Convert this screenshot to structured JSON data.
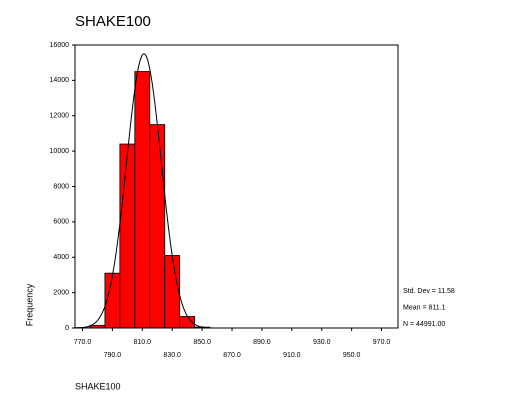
{
  "chart_data": {
    "type": "histogram",
    "title": "SHAKE100",
    "xlabel": "SHAKE100",
    "ylabel": "Frequency",
    "bins": [
      765,
      775,
      785,
      795,
      805,
      815,
      825,
      835,
      845,
      855
    ],
    "values": [
      20,
      150,
      3100,
      10400,
      14500,
      11500,
      4100,
      650,
      50
    ],
    "color": "#ff0000",
    "xlim": [
      765,
      981
    ],
    "xticks": [
      {
        "value": 770,
        "label": "770.0"
      },
      {
        "value": 790,
        "label": "790.0"
      },
      {
        "value": 810,
        "label": "810.0"
      },
      {
        "value": 830,
        "label": "830.0"
      },
      {
        "value": 850,
        "label": "850.0"
      },
      {
        "value": 870,
        "label": "870.0"
      },
      {
        "value": 890,
        "label": "890.0"
      },
      {
        "value": 910,
        "label": "910.0"
      },
      {
        "value": 930,
        "label": "930.0"
      },
      {
        "value": 950,
        "label": "950.0"
      },
      {
        "value": 970,
        "label": "970.0"
      }
    ],
    "ylim": [
      0,
      16000
    ],
    "yticks": [
      0,
      2000,
      4000,
      6000,
      8000,
      10000,
      12000,
      14000,
      16000
    ],
    "stats": [
      "Std. Dev = 11.58",
      "Mean = 811.1",
      "N = 44991.00"
    ]
  }
}
